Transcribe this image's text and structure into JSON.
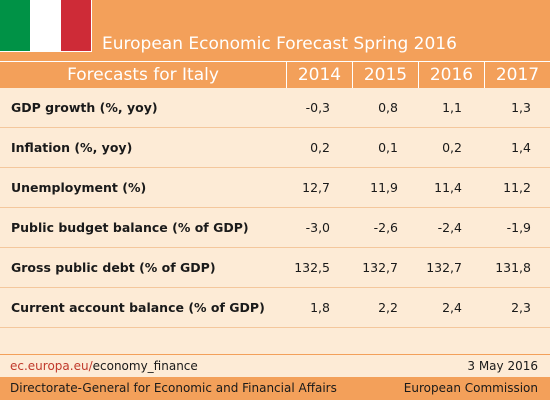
{
  "title": "European Economic Forecast Spring 2016",
  "flag_colors": [
    "#009246",
    "#ffffff",
    "#ce2b37"
  ],
  "colors": {
    "accent": "#f3a05a",
    "background": "#fdebd6",
    "link": "#c0392b"
  },
  "table": {
    "header_label": "Forecasts for Italy",
    "years": [
      "2014",
      "2015",
      "2016",
      "2017"
    ],
    "rows": [
      {
        "label": "GDP growth (%, yoy)",
        "values": [
          "-0,3",
          "0,8",
          "1,1",
          "1,3"
        ]
      },
      {
        "label": "Inflation (%, yoy)",
        "values": [
          "0,2",
          "0,1",
          "0,2",
          "1,4"
        ]
      },
      {
        "label": "Unemployment (%)",
        "values": [
          "12,7",
          "11,9",
          "11,4",
          "11,2"
        ]
      },
      {
        "label": "Public budget balance (% of GDP)",
        "values": [
          "-3,0",
          "-2,6",
          "-2,4",
          "-1,9"
        ]
      },
      {
        "label": "Gross public debt (% of GDP)",
        "values": [
          "132,5",
          "132,7",
          "132,7",
          "131,8"
        ]
      },
      {
        "label": "Current account balance (% of GDP)",
        "values": [
          "1,8",
          "2,2",
          "2,4",
          "2,3"
        ]
      }
    ]
  },
  "footer": {
    "url_domain": "ec.europa.eu/",
    "url_path": "economy_finance",
    "date": "3 May 2016",
    "dg": "Directorate-General for Economic and Financial Affairs",
    "org": "European Commission"
  }
}
